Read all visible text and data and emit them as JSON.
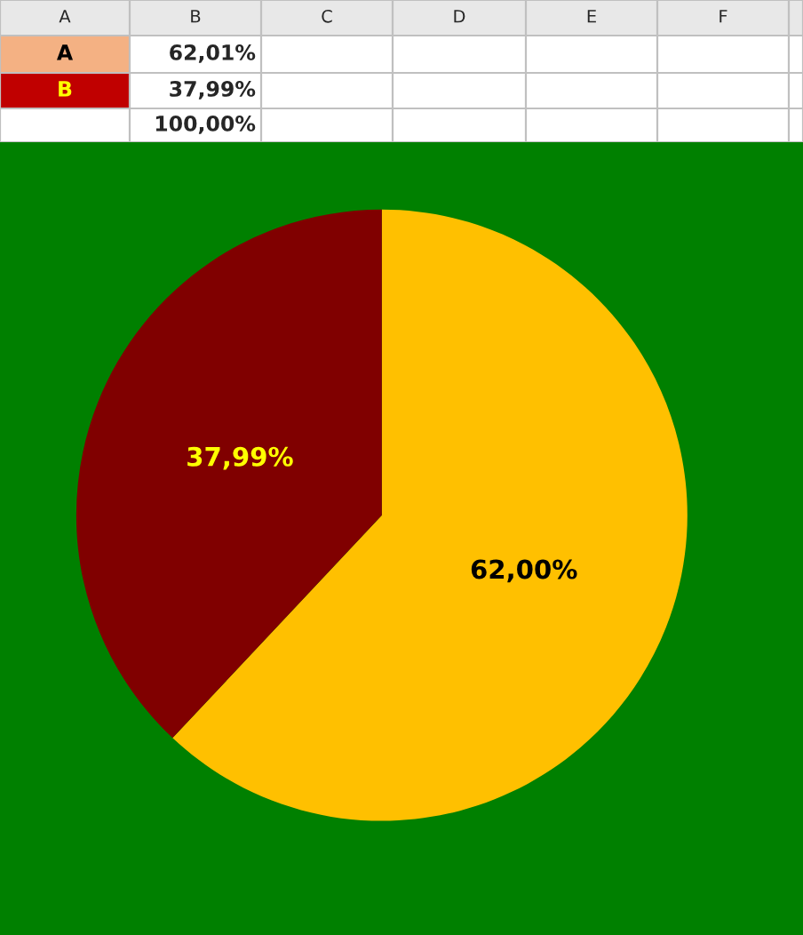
{
  "chart_data": {
    "type": "pie",
    "categories": [
      null,
      null
    ],
    "values": [
      62.0,
      37.99
    ],
    "colors": [
      "#ffc000",
      "#800000"
    ],
    "value_labels": [
      "62,00%",
      "37,99%"
    ],
    "annotations": [
      "A",
      "B",
      "C",
      "D",
      "E",
      "F",
      "A",
      "B",
      "62,01%",
      "37,99%",
      "100,00%"
    ]
  }
}
